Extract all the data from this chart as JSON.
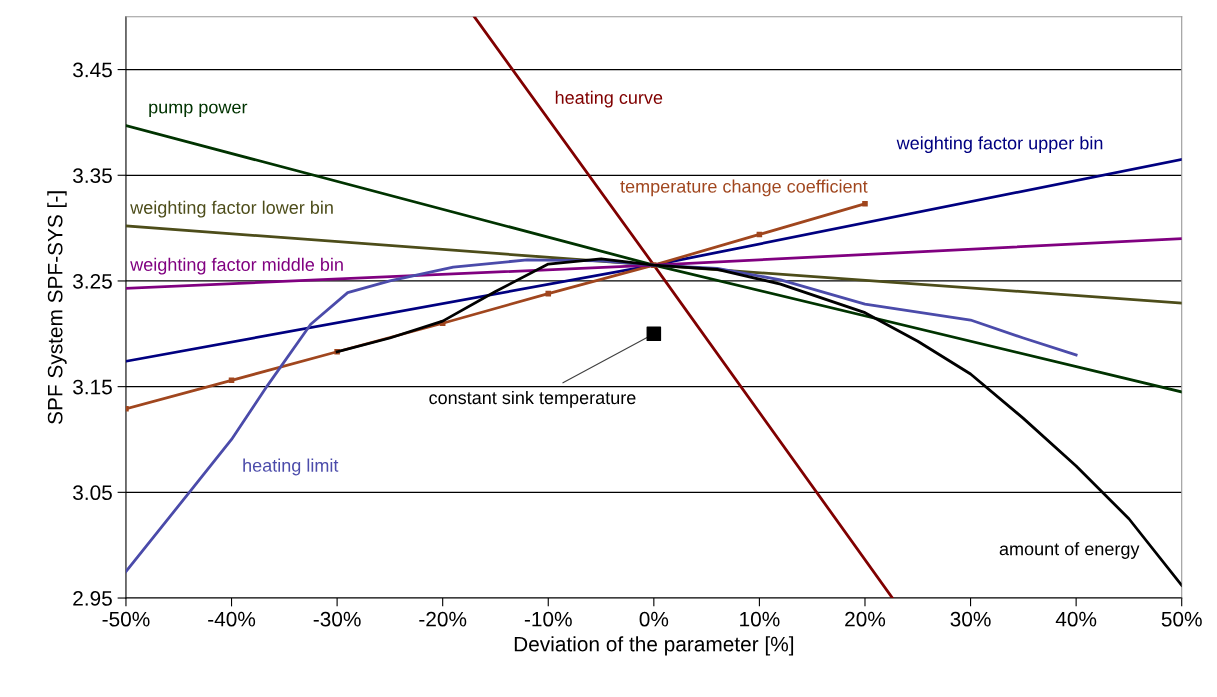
{
  "chart_data": {
    "type": "line",
    "xlabel": "Deviation of the parameter [%]",
    "ylabel": "SPF System SPF-SYS [-]",
    "xlim": [
      -50,
      50
    ],
    "ylim": [
      2.95,
      3.5
    ],
    "xticks": [
      {
        "value": -50,
        "label": "-50%"
      },
      {
        "value": -40,
        "label": "-40%"
      },
      {
        "value": -30,
        "label": "-30%"
      },
      {
        "value": -20,
        "label": "-20%"
      },
      {
        "value": -10,
        "label": "-10%"
      },
      {
        "value": 0,
        "label": "0%"
      },
      {
        "value": 10,
        "label": "10%"
      },
      {
        "value": 20,
        "label": "20%"
      },
      {
        "value": 30,
        "label": "30%"
      },
      {
        "value": 40,
        "label": "40%"
      },
      {
        "value": 50,
        "label": "50%"
      }
    ],
    "yticks": [
      {
        "value": 2.95,
        "label": "2.95"
      },
      {
        "value": 3.05,
        "label": "3.05"
      },
      {
        "value": 3.15,
        "label": "3.15"
      },
      {
        "value": 3.25,
        "label": "3.25"
      },
      {
        "value": 3.35,
        "label": "3.35"
      },
      {
        "value": 3.45,
        "label": "3.45"
      }
    ],
    "grid": "y",
    "legend": false,
    "series": [
      {
        "name": "pump power",
        "color": "#003300",
        "x": [
          -50,
          0,
          50
        ],
        "values": [
          3.397,
          3.265,
          3.145
        ]
      },
      {
        "name": "heating curve",
        "color": "#800000",
        "x": [
          -17,
          0,
          22.6
        ],
        "values": [
          3.5,
          3.265,
          2.95
        ]
      },
      {
        "name": "weighting factor upper bin",
        "color": "#000080",
        "x": [
          -50,
          0,
          50
        ],
        "values": [
          3.174,
          3.265,
          3.365
        ]
      },
      {
        "name": "temperature change coefficient",
        "color": "#a0461e",
        "marker": "square",
        "x": [
          -50,
          -40,
          -30,
          -20,
          -10,
          0,
          10,
          20
        ],
        "values": [
          3.129,
          3.156,
          3.183,
          3.21,
          3.238,
          3.265,
          3.294,
          3.323
        ]
      },
      {
        "name": "weighting factor lower bin",
        "color": "#4d4d1a",
        "x": [
          -50,
          0,
          50
        ],
        "values": [
          3.302,
          3.265,
          3.229
        ]
      },
      {
        "name": "weighting factor middle bin",
        "color": "#800080",
        "x": [
          -50,
          0,
          50
        ],
        "values": [
          3.243,
          3.265,
          3.29
        ]
      },
      {
        "name": "heating limit",
        "color": "#4b4baa",
        "x": [
          -50,
          -44,
          -40,
          -36.6,
          -32.5,
          -29,
          -25,
          -19,
          -12,
          -5,
          0,
          6,
          12,
          20,
          30,
          35,
          40
        ],
        "values": [
          2.975,
          3.05,
          3.1,
          3.151,
          3.209,
          3.239,
          3.25,
          3.263,
          3.27,
          3.269,
          3.265,
          3.262,
          3.251,
          3.228,
          3.213,
          3.196,
          3.18
        ]
      },
      {
        "name": "amount of energy",
        "color": "#000000",
        "x": [
          -30,
          -25,
          -20,
          -15,
          -10,
          -5,
          0,
          6,
          12,
          20,
          25,
          30,
          35,
          40,
          45,
          50
        ],
        "values": [
          3.183,
          3.196,
          3.212,
          3.24,
          3.266,
          3.271,
          3.265,
          3.261,
          3.247,
          3.22,
          3.193,
          3.162,
          3.12,
          3.075,
          3.025,
          2.962
        ]
      },
      {
        "name": "constant sink temperature",
        "type": "scatter",
        "marker": "square",
        "color": "#000000",
        "x": [
          0
        ],
        "values": [
          3.2
        ]
      }
    ]
  }
}
